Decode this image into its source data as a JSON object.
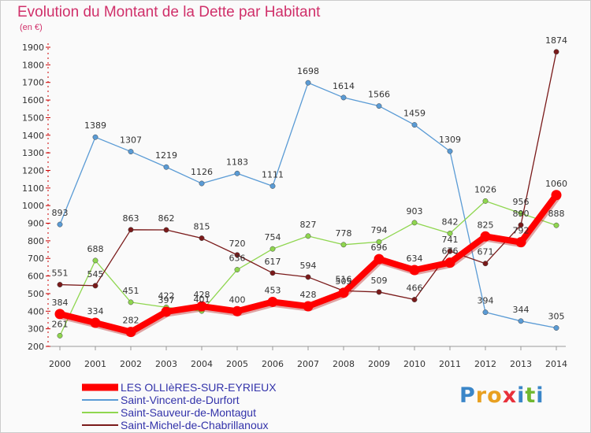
{
  "header": {
    "title": "Evolution du Montant de la Dette par Habitant",
    "unit": "(en €)"
  },
  "logo": {
    "text": "Proxiti",
    "letter_colors": [
      "#3a86c8",
      "#e8a020",
      "#e8a020",
      "#e8303a",
      "#3a86c8",
      "#70b830",
      "#3a86c8"
    ]
  },
  "chart_data": {
    "type": "line",
    "title": "Evolution du Montant de la Dette par Habitant",
    "ylabel": "(en €)",
    "xlabel": "",
    "x": [
      "2000",
      "2001",
      "2002",
      "2003",
      "2004",
      "2005",
      "2006",
      "2007",
      "2008",
      "2009",
      "2010",
      "2011",
      "2012",
      "2013",
      "2014"
    ],
    "ylim": [
      200,
      1900
    ],
    "yticks": [
      200,
      300,
      400,
      500,
      600,
      700,
      800,
      900,
      1000,
      1100,
      1200,
      1300,
      1400,
      1500,
      1600,
      1700,
      1800,
      1900
    ],
    "grid": false,
    "legend_position": "bottom-left",
    "series": [
      {
        "name": "LES OLLIèRES-SUR-EYRIEUX",
        "color": "#ff0000",
        "highlight": true,
        "values": [
          384,
          334,
          282,
          397,
          428,
          400,
          453,
          428,
          505,
          696,
          634,
          676,
          825,
          792,
          1060
        ]
      },
      {
        "name": "Saint-Vincent-de-Durfort",
        "color": "#5a9bd5",
        "highlight": false,
        "values": [
          893,
          1389,
          1307,
          1219,
          1126,
          1183,
          1111,
          1698,
          1614,
          1566,
          1459,
          1309,
          394,
          344,
          305
        ]
      },
      {
        "name": "Saint-Sauveur-de-Montagut",
        "color": "#8fd64f",
        "highlight": false,
        "values": [
          261,
          688,
          451,
          422,
          401,
          636,
          754,
          827,
          778,
          794,
          903,
          842,
          1026,
          956,
          888
        ]
      },
      {
        "name": "Saint-Michel-de-Chabrillanoux",
        "color": "#7a1a1a",
        "highlight": false,
        "values": [
          551,
          545,
          863,
          862,
          815,
          720,
          617,
          594,
          516,
          509,
          466,
          741,
          671,
          890,
          1874
        ]
      }
    ]
  }
}
